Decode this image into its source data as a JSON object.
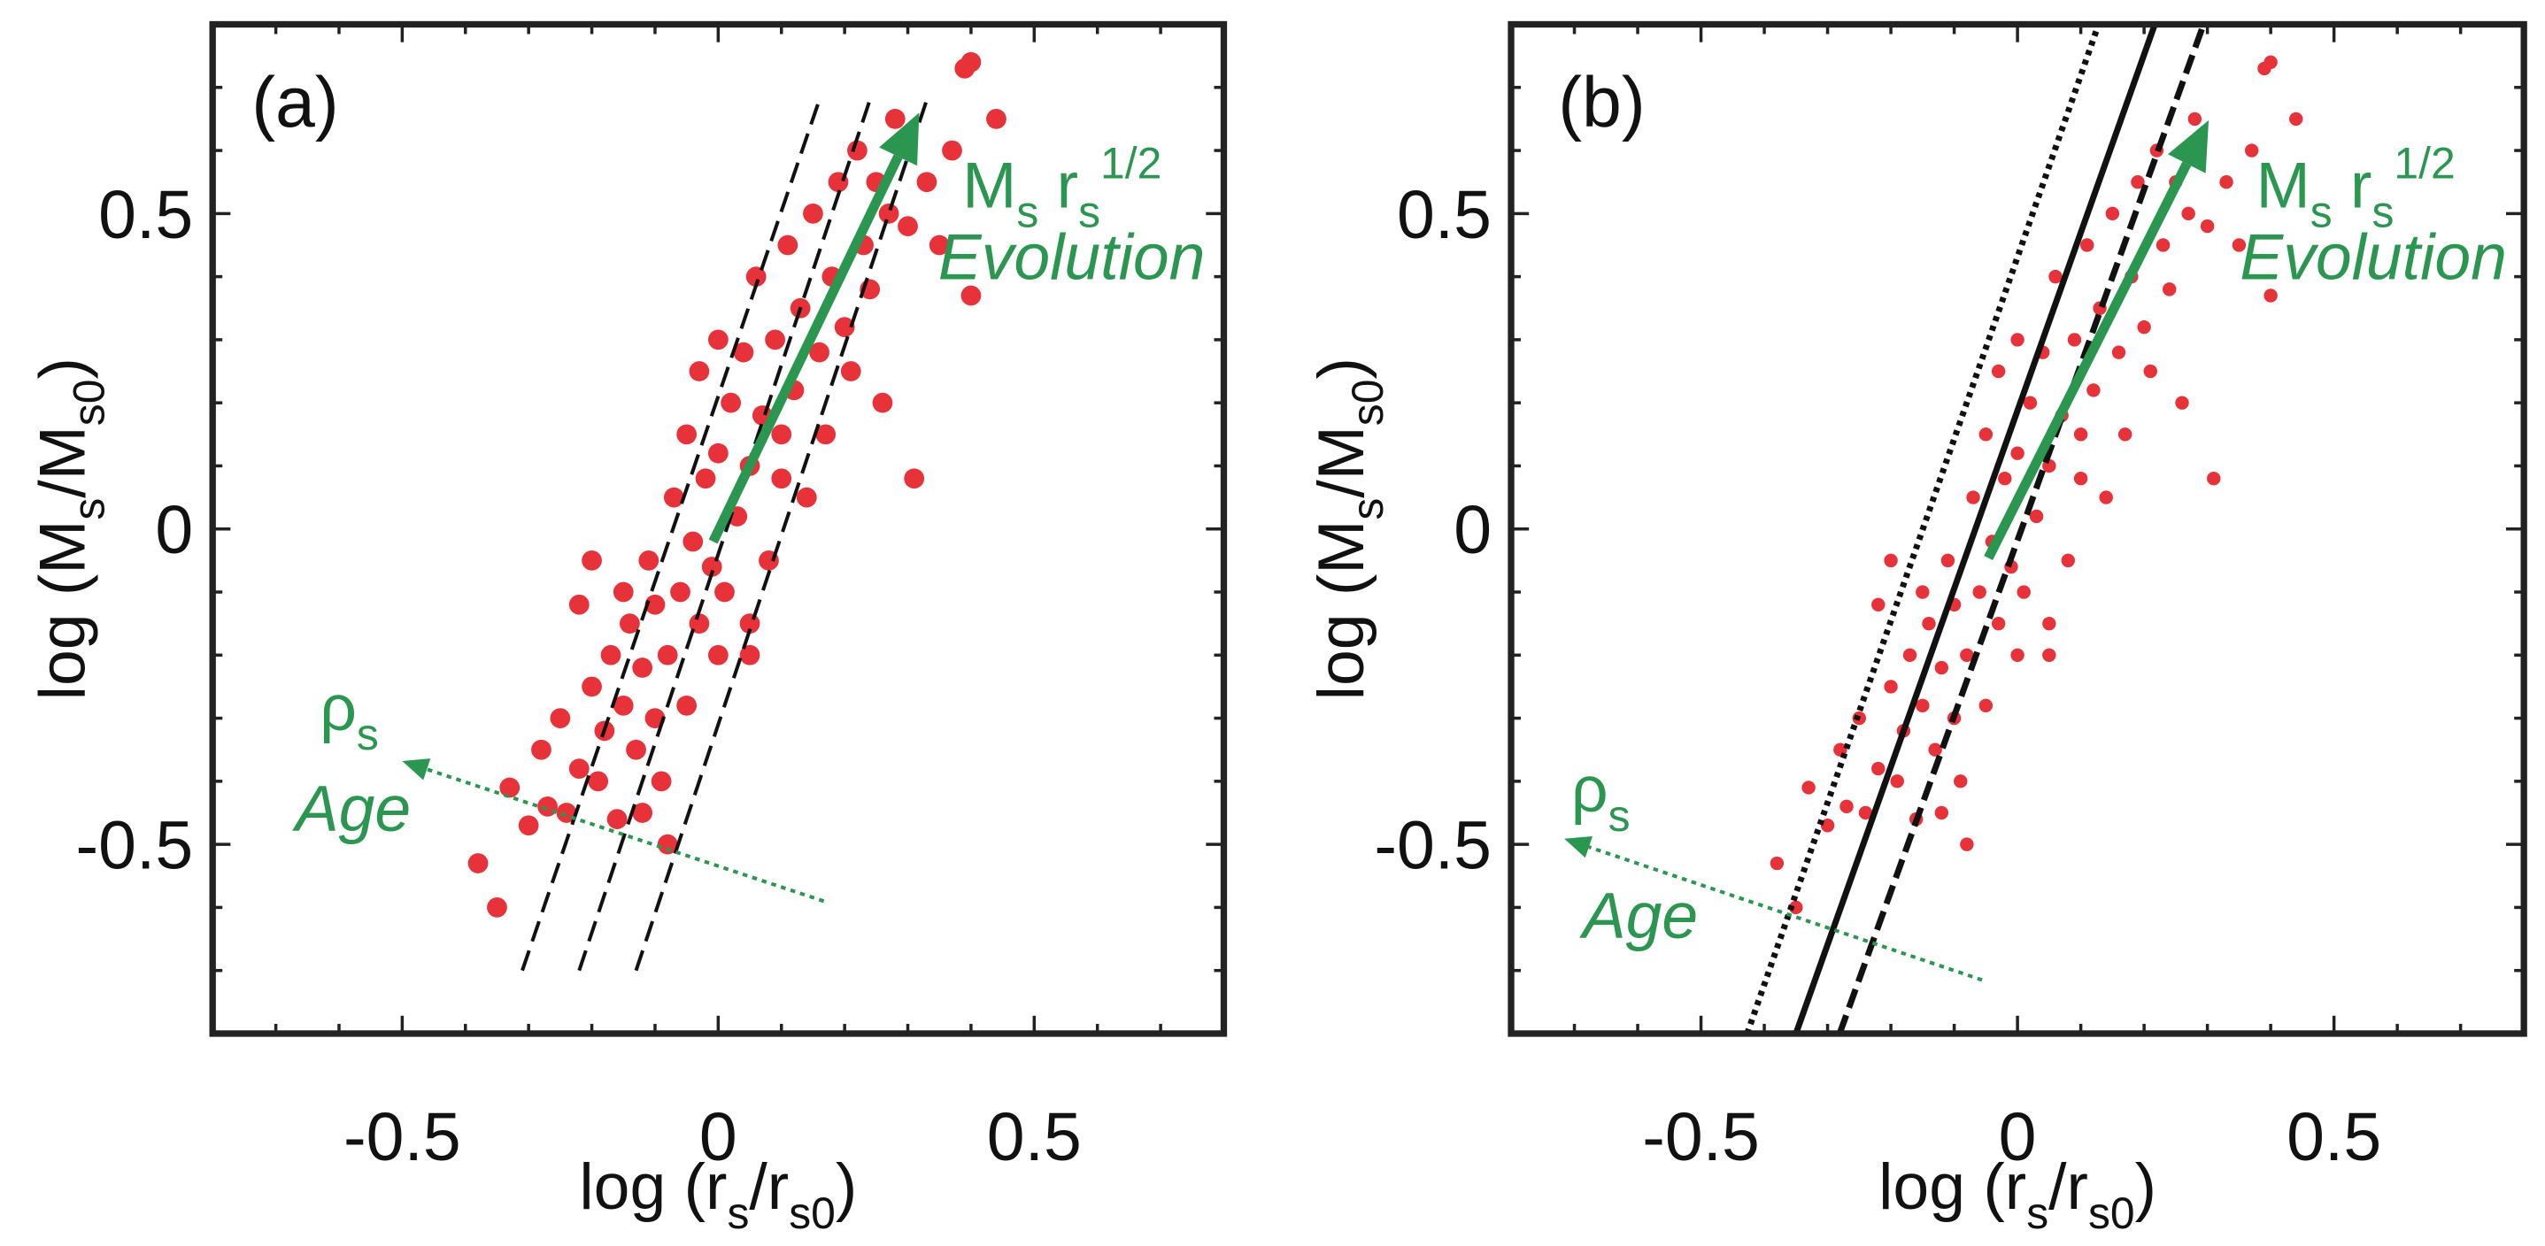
{
  "chart_data": [
    {
      "type": "scatter",
      "label": "(a)",
      "color": "#e8323a",
      "xlabel": [
        {
          "t": "log (r"
        },
        {
          "t": "s",
          "shift": "sub"
        },
        {
          "t": "/r"
        },
        {
          "t": "s0",
          "shift": "sub"
        },
        {
          "t": ")"
        }
      ],
      "ylabel": [
        {
          "t": "log (M"
        },
        {
          "t": "s",
          "shift": "sub"
        },
        {
          "t": "/M"
        },
        {
          "t": "s0",
          "shift": "sub"
        },
        {
          "t": ")"
        }
      ],
      "xlim": [
        -0.8,
        0.8
      ],
      "ylim": [
        -0.8,
        0.8
      ],
      "xticks": [
        -0.5,
        0,
        0.5
      ],
      "yticks": [
        -0.5,
        0,
        0.5
      ],
      "xminor": [
        -0.7,
        -0.6,
        -0.4,
        -0.3,
        -0.2,
        -0.1,
        0.1,
        0.2,
        0.3,
        0.4,
        0.6,
        0.7
      ],
      "yminor": [
        -0.7,
        -0.6,
        -0.4,
        -0.3,
        -0.2,
        -0.1,
        0.1,
        0.2,
        0.3,
        0.4,
        0.6,
        0.7
      ],
      "x": [
        -0.38,
        -0.35,
        -0.33,
        -0.3,
        -0.28,
        -0.27,
        -0.25,
        -0.24,
        -0.22,
        -0.22,
        -0.2,
        -0.19,
        -0.18,
        -0.17,
        -0.16,
        -0.15,
        -0.14,
        -0.13,
        -0.12,
        -0.11,
        -0.1,
        -0.1,
        -0.09,
        -0.08,
        -0.07,
        -0.06,
        -0.05,
        -0.05,
        -0.04,
        -0.03,
        -0.03,
        -0.02,
        -0.01,
        0,
        0,
        0.01,
        0.02,
        0.03,
        0.04,
        0.05,
        0.05,
        0.06,
        0.07,
        0.08,
        0.09,
        0.1,
        0.11,
        0.12,
        0.13,
        0.14,
        0.15,
        0.16,
        0.17,
        0.18,
        0.19,
        0.2,
        0.21,
        0.22,
        0.23,
        0.24,
        0.25,
        0.26,
        0.27,
        0.28,
        0.3,
        0.31,
        0.33,
        0.35,
        0.37,
        0.39,
        0.4,
        0.4,
        0.44,
        -0.08,
        0.05,
        -0.2,
        0.1,
        -0.15,
        0,
        -0.12
      ],
      "y": [
        -0.53,
        -0.6,
        -0.41,
        -0.47,
        -0.35,
        -0.44,
        -0.3,
        -0.45,
        -0.38,
        -0.12,
        -0.25,
        -0.4,
        -0.32,
        -0.2,
        -0.46,
        -0.28,
        -0.15,
        -0.35,
        -0.22,
        -0.05,
        -0.3,
        -0.12,
        -0.4,
        -0.2,
        0.05,
        -0.1,
        -0.28,
        0.15,
        -0.02,
        0.25,
        -0.15,
        0.08,
        -0.06,
        0.3,
        0.12,
        -0.1,
        0.2,
        0.02,
        0.28,
        -0.15,
        0.1,
        0.4,
        0.18,
        -0.05,
        0.3,
        0.08,
        0.45,
        0.22,
        0.35,
        0.05,
        0.5,
        0.28,
        0.15,
        0.4,
        0.55,
        0.32,
        0.25,
        0.6,
        0.45,
        0.38,
        0.55,
        0.2,
        0.5,
        0.65,
        0.48,
        0.08,
        0.55,
        0.45,
        0.6,
        0.73,
        0.37,
        0.74,
        0.65,
        -0.5,
        -0.2,
        -0.05,
        0.15,
        -0.1,
        -0.2,
        -0.45
      ],
      "lines": [
        {
          "style": "dashed",
          "x": [
            -0.31,
            0.16
          ],
          "y": [
            -0.7,
            0.68
          ]
        },
        {
          "style": "dashed",
          "x": [
            -0.22,
            0.24
          ],
          "y": [
            -0.7,
            0.68
          ]
        },
        {
          "style": "dashed",
          "x": [
            -0.13,
            0.33
          ],
          "y": [
            -0.7,
            0.68
          ]
        }
      ],
      "arrows": [
        {
          "style": "solid",
          "color": "#2a9650",
          "x": [
            -0.008,
            0.318
          ],
          "y": [
            -0.02,
            0.66
          ]
        },
        {
          "style": "dotted",
          "color": "#2a9650",
          "x": [
            0.167,
            -0.5
          ],
          "y": [
            -0.59,
            -0.368
          ]
        }
      ],
      "annotations": [
        {
          "color": "#2a9650",
          "parts": [
            {
              "t": "M"
            },
            {
              "t": "s",
              "shift": "sub"
            },
            {
              "t": " r"
            },
            {
              "t": "s",
              "shift": "sub"
            },
            {
              "t": "1/2",
              "shift": "sup"
            }
          ]
        },
        {
          "color": "#2a9650",
          "italic": true,
          "parts": [
            {
              "t": "Evolution"
            }
          ]
        },
        {
          "color": "#2a9650",
          "parts": [
            {
              "t": "ρ"
            },
            {
              "t": "s",
              "shift": "sub"
            }
          ]
        },
        {
          "color": "#2a9650",
          "italic": true,
          "parts": [
            {
              "t": "Age"
            }
          ]
        }
      ]
    },
    {
      "type": "scatter",
      "label": "(b)",
      "color": "#e8323a",
      "xlabel": [
        {
          "t": "log (r"
        },
        {
          "t": "s",
          "shift": "sub"
        },
        {
          "t": "/r"
        },
        {
          "t": "s0",
          "shift": "sub"
        },
        {
          "t": ")"
        }
      ],
      "ylabel": [
        {
          "t": "log (M"
        },
        {
          "t": "s",
          "shift": "sub"
        },
        {
          "t": "/M"
        },
        {
          "t": "s0",
          "shift": "sub"
        },
        {
          "t": ")"
        }
      ],
      "xlim": [
        -0.8,
        0.8
      ],
      "ylim": [
        -0.8,
        0.8
      ],
      "xticks": [
        -0.5,
        0,
        0.5
      ],
      "yticks": [
        -0.5,
        0,
        0.5
      ],
      "xminor": [
        -0.7,
        -0.6,
        -0.4,
        -0.3,
        -0.2,
        -0.1,
        0.1,
        0.2,
        0.3,
        0.4,
        0.6,
        0.7
      ],
      "yminor": [
        -0.7,
        -0.6,
        -0.4,
        -0.3,
        -0.2,
        -0.1,
        0.1,
        0.2,
        0.3,
        0.4,
        0.6,
        0.7
      ],
      "x": [
        -0.38,
        -0.35,
        -0.33,
        -0.3,
        -0.28,
        -0.27,
        -0.25,
        -0.24,
        -0.22,
        -0.22,
        -0.2,
        -0.19,
        -0.18,
        -0.17,
        -0.16,
        -0.15,
        -0.14,
        -0.13,
        -0.12,
        -0.11,
        -0.1,
        -0.1,
        -0.09,
        -0.08,
        -0.07,
        -0.06,
        -0.05,
        -0.05,
        -0.04,
        -0.03,
        -0.03,
        -0.02,
        -0.01,
        0,
        0,
        0.01,
        0.02,
        0.03,
        0.04,
        0.05,
        0.05,
        0.06,
        0.07,
        0.08,
        0.09,
        0.1,
        0.11,
        0.12,
        0.13,
        0.14,
        0.15,
        0.16,
        0.17,
        0.18,
        0.19,
        0.2,
        0.21,
        0.22,
        0.23,
        0.24,
        0.25,
        0.26,
        0.27,
        0.28,
        0.3,
        0.31,
        0.33,
        0.35,
        0.37,
        0.39,
        0.4,
        0.4,
        0.44,
        -0.08,
        0.05,
        -0.2,
        0.1,
        -0.15,
        0,
        -0.12
      ],
      "y": [
        -0.53,
        -0.6,
        -0.41,
        -0.47,
        -0.35,
        -0.44,
        -0.3,
        -0.45,
        -0.38,
        -0.12,
        -0.25,
        -0.4,
        -0.32,
        -0.2,
        -0.46,
        -0.28,
        -0.15,
        -0.35,
        -0.22,
        -0.05,
        -0.3,
        -0.12,
        -0.4,
        -0.2,
        0.05,
        -0.1,
        -0.28,
        0.15,
        -0.02,
        0.25,
        -0.15,
        0.08,
        -0.06,
        0.3,
        0.12,
        -0.1,
        0.2,
        0.02,
        0.28,
        -0.15,
        0.1,
        0.4,
        0.18,
        -0.05,
        0.3,
        0.08,
        0.45,
        0.22,
        0.35,
        0.05,
        0.5,
        0.28,
        0.15,
        0.4,
        0.55,
        0.32,
        0.25,
        0.6,
        0.45,
        0.38,
        0.55,
        0.2,
        0.5,
        0.65,
        0.48,
        0.08,
        0.55,
        0.45,
        0.6,
        0.73,
        0.37,
        0.74,
        0.65,
        -0.5,
        -0.2,
        -0.05,
        0.15,
        -0.1,
        -0.2,
        -0.45
      ],
      "lines": [
        {
          "style": "dotted",
          "x": [
            -0.427,
            0.128
          ],
          "y": [
            -0.8,
            0.8
          ]
        },
        {
          "style": "solid",
          "x": [
            -0.35,
            0.217
          ],
          "y": [
            -0.8,
            0.8
          ]
        },
        {
          "style": "dashed",
          "x": [
            -0.281,
            0.294
          ],
          "y": [
            -0.8,
            0.8
          ]
        }
      ],
      "arrows": [
        {
          "style": "solid",
          "color": "#2a9650",
          "x": [
            -0.046,
            0.302
          ],
          "y": [
            -0.046,
            0.648
          ]
        },
        {
          "style": "dotted",
          "color": "#2a9650",
          "x": [
            -0.056,
            -0.716
          ],
          "y": [
            -0.715,
            -0.491
          ]
        }
      ],
      "annotations": [
        {
          "color": "#2a9650",
          "parts": [
            {
              "t": "M"
            },
            {
              "t": "s",
              "shift": "sub"
            },
            {
              "t": " r"
            },
            {
              "t": "s",
              "shift": "sub"
            },
            {
              "t": "1/2",
              "shift": "sup"
            }
          ]
        },
        {
          "color": "#2a9650",
          "italic": true,
          "parts": [
            {
              "t": "Evolution"
            }
          ]
        },
        {
          "color": "#2a9650",
          "parts": [
            {
              "t": "ρ"
            },
            {
              "t": "s",
              "shift": "sub"
            }
          ]
        },
        {
          "color": "#2a9650",
          "italic": true,
          "parts": [
            {
              "t": "Age"
            }
          ]
        }
      ]
    }
  ]
}
